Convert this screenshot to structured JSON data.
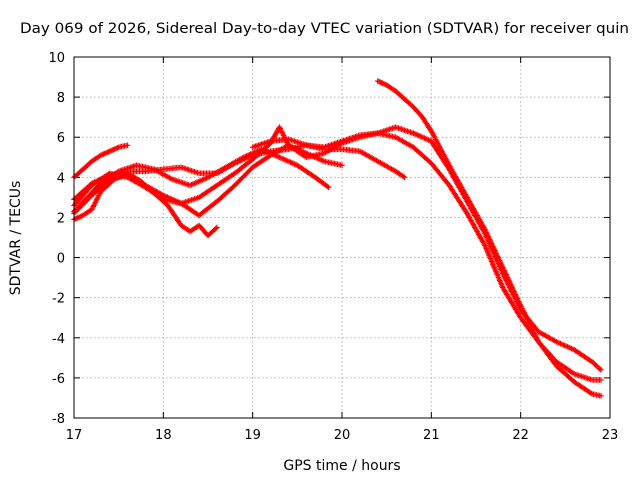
{
  "chart_data": {
    "type": "scatter",
    "title": "Day 069 of 2026, Sidereal Day-to-day VTEC variation (SDTVAR) for receiver quin",
    "xlabel": "GPS time / hours",
    "ylabel": "SDTVAR / TECUs",
    "xlim": [
      17,
      23
    ],
    "ylim": [
      -8,
      10
    ],
    "xticks": [
      17,
      18,
      19,
      20,
      21,
      22,
      23
    ],
    "yticks": [
      -8,
      -6,
      -4,
      -2,
      0,
      2,
      4,
      6,
      8,
      10
    ],
    "grid": true,
    "marker": "plus",
    "color": "#ff0000",
    "series": [
      {
        "name": "track-1",
        "x": [
          17.0,
          17.1,
          17.2,
          17.3,
          17.4,
          17.5,
          17.6
        ],
        "y": [
          4.0,
          4.4,
          4.8,
          5.1,
          5.3,
          5.5,
          5.6
        ]
      },
      {
        "name": "track-2",
        "x": [
          17.0,
          17.1,
          17.2,
          17.3,
          17.45,
          17.6,
          17.75,
          17.9,
          18.05,
          18.2,
          18.3,
          18.4,
          18.5,
          18.6
        ],
        "y": [
          1.9,
          2.1,
          2.4,
          3.3,
          3.9,
          4.2,
          3.8,
          3.2,
          2.6,
          1.6,
          1.3,
          1.6,
          1.1,
          1.5
        ]
      },
      {
        "name": "track-3",
        "x": [
          17.0,
          17.15,
          17.3,
          17.5,
          17.7,
          17.9,
          18.1,
          18.3,
          18.5,
          18.7,
          18.9,
          19.1,
          19.3,
          19.5,
          19.7,
          19.85
        ],
        "y": [
          2.3,
          3.0,
          3.7,
          4.3,
          4.6,
          4.4,
          3.9,
          3.6,
          4.0,
          4.5,
          5.0,
          5.4,
          5.0,
          4.6,
          4.0,
          3.5
        ]
      },
      {
        "name": "track-4",
        "x": [
          17.0,
          17.2,
          17.4,
          17.6,
          17.8,
          18.0,
          18.2,
          18.4,
          18.6,
          18.8,
          19.0,
          19.2,
          19.4,
          19.6,
          19.8,
          20.0
        ],
        "y": [
          2.6,
          3.6,
          4.2,
          4.0,
          3.5,
          2.9,
          2.7,
          2.1,
          2.8,
          3.6,
          4.5,
          5.1,
          5.6,
          5.2,
          4.8,
          4.6
        ]
      },
      {
        "name": "track-5",
        "x": [
          17.0,
          17.2,
          17.4,
          17.6,
          17.8,
          18.0,
          18.2,
          18.4,
          18.6,
          18.8,
          19.0,
          19.2,
          19.4,
          19.6,
          19.8,
          20.0,
          20.2,
          20.4,
          20.6,
          20.7
        ],
        "y": [
          2.9,
          3.7,
          4.1,
          4.3,
          4.3,
          4.4,
          4.5,
          4.2,
          4.2,
          4.7,
          5.1,
          5.3,
          5.4,
          5.6,
          5.4,
          5.4,
          5.3,
          4.8,
          4.3,
          4.0
        ]
      },
      {
        "name": "track-6",
        "x": [
          17.0,
          17.2,
          17.4,
          17.6,
          17.8,
          18.0,
          18.2,
          18.4,
          18.6,
          18.8,
          19.0,
          19.2,
          19.3,
          19.4,
          19.6,
          19.8,
          20.0,
          20.2,
          20.4,
          20.6,
          20.8,
          21.0,
          21.2,
          21.4,
          21.6,
          21.8,
          22.0,
          22.2,
          22.4,
          22.6,
          22.8,
          22.9
        ],
        "y": [
          2.2,
          3.1,
          3.9,
          4.1,
          3.6,
          3.1,
          2.7,
          3.0,
          3.6,
          4.2,
          4.9,
          5.7,
          6.5,
          5.6,
          5.0,
          5.2,
          5.7,
          6.0,
          6.2,
          6.0,
          5.5,
          4.7,
          3.6,
          2.2,
          0.6,
          -1.5,
          -3.0,
          -4.2,
          -5.2,
          -5.8,
          -6.1,
          -6.1
        ]
      },
      {
        "name": "track-7",
        "x": [
          19.0,
          19.2,
          19.4,
          19.6,
          19.8,
          20.0,
          20.2,
          20.4,
          20.6,
          20.8,
          21.0,
          21.2,
          21.4,
          21.6,
          21.8,
          22.0,
          22.2,
          22.4,
          22.6,
          22.8,
          22.9
        ],
        "y": [
          5.5,
          5.8,
          5.9,
          5.6,
          5.5,
          5.8,
          6.1,
          6.2,
          6.5,
          6.2,
          5.8,
          4.4,
          2.8,
          1.2,
          -0.8,
          -2.6,
          -3.7,
          -4.2,
          -4.6,
          -5.2,
          -5.6
        ]
      },
      {
        "name": "track-8",
        "x": [
          20.4,
          20.5,
          20.6,
          20.7,
          20.8,
          20.9,
          21.0,
          21.2,
          21.4,
          21.6,
          21.8,
          22.0,
          22.2,
          22.4,
          22.6,
          22.8,
          22.9
        ],
        "y": [
          8.8,
          8.6,
          8.3,
          7.9,
          7.5,
          7.0,
          6.3,
          4.6,
          3.0,
          1.4,
          -0.5,
          -2.4,
          -4.2,
          -5.4,
          -6.2,
          -6.8,
          -6.9
        ]
      }
    ]
  }
}
